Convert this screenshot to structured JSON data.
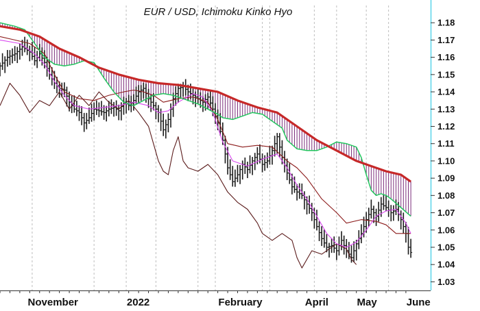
{
  "chart_data": {
    "type": "line",
    "title": "EUR / USD, Ichimoku Kinko Hyo",
    "subtitle": "",
    "xlabel": "",
    "ylabel": "",
    "ylim": [
      1.025,
      1.19
    ],
    "yticks": [
      1.03,
      1.04,
      1.05,
      1.06,
      1.07,
      1.08,
      1.09,
      1.1,
      1.11,
      1.12,
      1.13,
      1.14,
      1.15,
      1.16,
      1.17,
      1.18
    ],
    "x_tick_labels": [
      "November",
      "2022",
      "February",
      "April",
      "May",
      "June"
    ],
    "grid": "vertical dashed at month starts",
    "legend": "none",
    "colors": {
      "price_bars": "#1a1a1a",
      "senkou_b": "#c62828",
      "senkou_a": "#22c55e",
      "cloud_fill": "#7b2d7b",
      "tenkan": "#d946ef",
      "kijun": "#8b1a1a",
      "chikou": "#5a1a1a",
      "axis_edge": "#59d4ea"
    },
    "series": [
      {
        "key": "price",
        "style": "ohlc bars",
        "values": [
          [
            0,
            1.155
          ],
          [
            3,
            1.16
          ],
          [
            6,
            1.162
          ],
          [
            9,
            1.166
          ],
          [
            12,
            1.163
          ],
          [
            14,
            1.158
          ],
          [
            16,
            1.162
          ],
          [
            18,
            1.157
          ],
          [
            20,
            1.15
          ],
          [
            22,
            1.145
          ],
          [
            24,
            1.142
          ],
          [
            26,
            1.141
          ],
          [
            28,
            1.134
          ],
          [
            30,
            1.13
          ],
          [
            32,
            1.128
          ],
          [
            34,
            1.122
          ],
          [
            36,
            1.125
          ],
          [
            38,
            1.13
          ],
          [
            40,
            1.129
          ],
          [
            42,
            1.128
          ],
          [
            44,
            1.13
          ],
          [
            46,
            1.131
          ],
          [
            48,
            1.129
          ],
          [
            50,
            1.134
          ],
          [
            52,
            1.132
          ],
          [
            54,
            1.135
          ],
          [
            56,
            1.14
          ],
          [
            58,
            1.142
          ],
          [
            60,
            1.136
          ],
          [
            62,
            1.132
          ],
          [
            64,
            1.128
          ],
          [
            66,
            1.118
          ],
          [
            68,
            1.124
          ],
          [
            70,
            1.136
          ],
          [
            72,
            1.142
          ],
          [
            74,
            1.143
          ],
          [
            76,
            1.14
          ],
          [
            78,
            1.138
          ],
          [
            80,
            1.136
          ],
          [
            82,
            1.134
          ],
          [
            84,
            1.137
          ],
          [
            86,
            1.13
          ],
          [
            88,
            1.122
          ],
          [
            90,
            1.112
          ],
          [
            92,
            1.096
          ],
          [
            94,
            1.088
          ],
          [
            96,
            1.092
          ],
          [
            98,
            1.098
          ],
          [
            100,
            1.095
          ],
          [
            102,
            1.1
          ],
          [
            104,
            1.104
          ],
          [
            106,
            1.098
          ],
          [
            108,
            1.1
          ],
          [
            110,
            1.106
          ],
          [
            112,
            1.114
          ],
          [
            114,
            1.102
          ],
          [
            116,
            1.093
          ],
          [
            118,
            1.085
          ],
          [
            120,
            1.082
          ],
          [
            122,
            1.08
          ],
          [
            124,
            1.075
          ],
          [
            126,
            1.07
          ],
          [
            128,
            1.062
          ],
          [
            130,
            1.055
          ],
          [
            132,
            1.05
          ],
          [
            134,
            1.051
          ],
          [
            136,
            1.048
          ],
          [
            138,
            1.054
          ],
          [
            140,
            1.048
          ],
          [
            142,
            1.044
          ],
          [
            144,
            1.052
          ],
          [
            146,
            1.058
          ],
          [
            148,
            1.066
          ],
          [
            150,
            1.072
          ],
          [
            152,
            1.068
          ],
          [
            154,
            1.075
          ],
          [
            156,
            1.073
          ],
          [
            158,
            1.07
          ],
          [
            160,
            1.072
          ],
          [
            162,
            1.066
          ],
          [
            164,
            1.058
          ],
          [
            165,
            1.05
          ],
          [
            166,
            1.047
          ]
        ]
      },
      {
        "key": "senkou_b",
        "style": "thick line",
        "values": [
          [
            0,
            1.178
          ],
          [
            8,
            1.176
          ],
          [
            16,
            1.172
          ],
          [
            24,
            1.165
          ],
          [
            32,
            1.16
          ],
          [
            40,
            1.154
          ],
          [
            48,
            1.15
          ],
          [
            56,
            1.147
          ],
          [
            64,
            1.145
          ],
          [
            72,
            1.144
          ],
          [
            80,
            1.142
          ],
          [
            88,
            1.14
          ],
          [
            96,
            1.135
          ],
          [
            104,
            1.131
          ],
          [
            112,
            1.128
          ],
          [
            120,
            1.12
          ],
          [
            128,
            1.112
          ],
          [
            136,
            1.106
          ],
          [
            144,
            1.1
          ],
          [
            150,
            1.097
          ],
          [
            156,
            1.094
          ],
          [
            162,
            1.092
          ],
          [
            166,
            1.088
          ]
        ]
      },
      {
        "key": "senkou_a",
        "style": "line",
        "values": [
          [
            0,
            1.18
          ],
          [
            6,
            1.178
          ],
          [
            10,
            1.176
          ],
          [
            14,
            1.168
          ],
          [
            18,
            1.16
          ],
          [
            22,
            1.156
          ],
          [
            26,
            1.155
          ],
          [
            30,
            1.156
          ],
          [
            34,
            1.158
          ],
          [
            38,
            1.157
          ],
          [
            42,
            1.148
          ],
          [
            46,
            1.14
          ],
          [
            50,
            1.134
          ],
          [
            54,
            1.132
          ],
          [
            58,
            1.135
          ],
          [
            62,
            1.138
          ],
          [
            66,
            1.139
          ],
          [
            70,
            1.138
          ],
          [
            74,
            1.136
          ],
          [
            78,
            1.134
          ],
          [
            80,
            1.133
          ],
          [
            84,
            1.13
          ],
          [
            88,
            1.127
          ],
          [
            90,
            1.125
          ],
          [
            94,
            1.124
          ],
          [
            98,
            1.126
          ],
          [
            102,
            1.128
          ],
          [
            106,
            1.127
          ],
          [
            110,
            1.123
          ],
          [
            114,
            1.119
          ],
          [
            116,
            1.112
          ],
          [
            120,
            1.107
          ],
          [
            124,
            1.106
          ],
          [
            128,
            1.106
          ],
          [
            132,
            1.108
          ],
          [
            136,
            1.111
          ],
          [
            140,
            1.11
          ],
          [
            144,
            1.108
          ],
          [
            146,
            1.102
          ],
          [
            148,
            1.092
          ],
          [
            150,
            1.083
          ],
          [
            152,
            1.08
          ],
          [
            154,
            1.081
          ],
          [
            156,
            1.08
          ],
          [
            158,
            1.078
          ],
          [
            162,
            1.073
          ],
          [
            166,
            1.068
          ]
        ]
      },
      {
        "key": "tenkan",
        "style": "line",
        "values": [
          [
            0,
            1.17
          ],
          [
            8,
            1.168
          ],
          [
            14,
            1.162
          ],
          [
            18,
            1.156
          ],
          [
            22,
            1.146
          ],
          [
            26,
            1.138
          ],
          [
            30,
            1.132
          ],
          [
            36,
            1.13
          ],
          [
            42,
            1.131
          ],
          [
            48,
            1.132
          ],
          [
            54,
            1.134
          ],
          [
            60,
            1.132
          ],
          [
            64,
            1.128
          ],
          [
            68,
            1.129
          ],
          [
            72,
            1.134
          ],
          [
            78,
            1.139
          ],
          [
            82,
            1.137
          ],
          [
            86,
            1.128
          ],
          [
            90,
            1.111
          ],
          [
            94,
            1.1
          ],
          [
            100,
            1.097
          ],
          [
            106,
            1.101
          ],
          [
            112,
            1.104
          ],
          [
            116,
            1.096
          ],
          [
            120,
            1.086
          ],
          [
            124,
            1.078
          ],
          [
            128,
            1.068
          ],
          [
            132,
            1.058
          ],
          [
            136,
            1.052
          ],
          [
            140,
            1.05
          ],
          [
            144,
            1.053
          ],
          [
            148,
            1.06
          ],
          [
            152,
            1.068
          ],
          [
            156,
            1.071
          ],
          [
            160,
            1.072
          ],
          [
            164,
            1.064
          ],
          [
            166,
            1.058
          ]
        ]
      },
      {
        "key": "kijun",
        "style": "line",
        "values": [
          [
            0,
            1.172
          ],
          [
            6,
            1.17
          ],
          [
            12,
            1.168
          ],
          [
            18,
            1.162
          ],
          [
            22,
            1.15
          ],
          [
            26,
            1.14
          ],
          [
            32,
            1.136
          ],
          [
            38,
            1.135
          ],
          [
            44,
            1.138
          ],
          [
            50,
            1.14
          ],
          [
            54,
            1.141
          ],
          [
            58,
            1.14
          ],
          [
            62,
            1.138
          ],
          [
            66,
            1.134
          ],
          [
            72,
            1.136
          ],
          [
            78,
            1.137
          ],
          [
            84,
            1.134
          ],
          [
            88,
            1.124
          ],
          [
            92,
            1.11
          ],
          [
            98,
            1.108
          ],
          [
            104,
            1.109
          ],
          [
            110,
            1.108
          ],
          [
            116,
            1.1
          ],
          [
            120,
            1.096
          ],
          [
            124,
            1.09
          ],
          [
            130,
            1.078
          ],
          [
            136,
            1.07
          ],
          [
            140,
            1.064
          ],
          [
            146,
            1.066
          ],
          [
            152,
            1.065
          ],
          [
            156,
            1.063
          ],
          [
            160,
            1.058
          ],
          [
            166,
            1.058
          ]
        ]
      },
      {
        "key": "chikou",
        "style": "line",
        "values": [
          [
            0,
            1.132
          ],
          [
            4,
            1.145
          ],
          [
            8,
            1.138
          ],
          [
            12,
            1.128
          ],
          [
            16,
            1.135
          ],
          [
            20,
            1.132
          ],
          [
            24,
            1.14
          ],
          [
            28,
            1.13
          ],
          [
            32,
            1.138
          ],
          [
            36,
            1.132
          ],
          [
            40,
            1.14
          ],
          [
            44,
            1.134
          ],
          [
            48,
            1.13
          ],
          [
            52,
            1.135
          ],
          [
            56,
            1.128
          ],
          [
            60,
            1.12
          ],
          [
            62,
            1.11
          ],
          [
            64,
            1.1
          ],
          [
            66,
            1.094
          ],
          [
            68,
            1.092
          ],
          [
            70,
            1.106
          ],
          [
            72,
            1.114
          ],
          [
            74,
            1.1
          ],
          [
            76,
            1.096
          ],
          [
            80,
            1.094
          ],
          [
            84,
            1.098
          ],
          [
            88,
            1.092
          ],
          [
            92,
            1.082
          ],
          [
            96,
            1.076
          ],
          [
            100,
            1.072
          ],
          [
            104,
            1.064
          ],
          [
            106,
            1.058
          ],
          [
            110,
            1.054
          ],
          [
            114,
            1.058
          ],
          [
            118,
            1.054
          ],
          [
            120,
            1.044
          ],
          [
            122,
            1.038
          ],
          [
            126,
            1.048
          ],
          [
            130,
            1.046
          ],
          [
            136,
            1.052
          ],
          [
            140,
            1.049
          ],
          [
            142,
            1.043
          ],
          [
            144,
            1.04
          ]
        ]
      }
    ]
  }
}
